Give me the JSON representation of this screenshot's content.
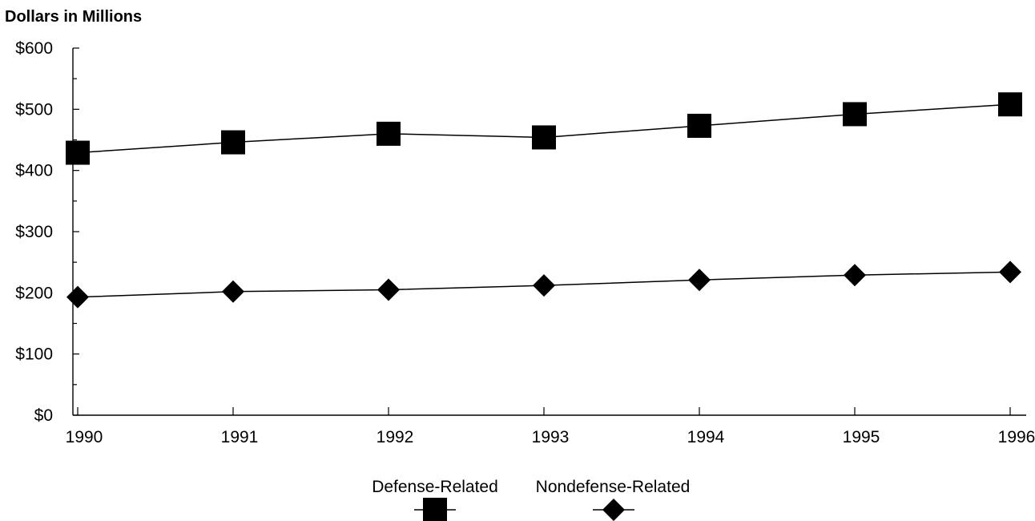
{
  "chart_data": {
    "type": "line",
    "ylabel": "Dollars in Millions",
    "xlabel": "",
    "title": "",
    "categories": [
      "1990",
      "1991",
      "1992",
      "1993",
      "1994",
      "1995",
      "1996"
    ],
    "ylim": [
      0,
      600
    ],
    "y_tick_labels": [
      "$0",
      "$100",
      "$200",
      "$300",
      "$400",
      "$500",
      "$600"
    ],
    "y_tick_values": [
      0,
      100,
      200,
      300,
      400,
      500,
      600
    ],
    "grid": false,
    "legend_position": "bottom-center",
    "series": [
      {
        "name": "Defense-Related",
        "marker": "square",
        "color": "#000000",
        "values": [
          429,
          446,
          460,
          454,
          473,
          492,
          508
        ]
      },
      {
        "name": "Nondefense-Related",
        "marker": "diamond",
        "color": "#000000",
        "values": [
          193,
          202,
          205,
          212,
          221,
          229,
          234
        ]
      }
    ]
  }
}
